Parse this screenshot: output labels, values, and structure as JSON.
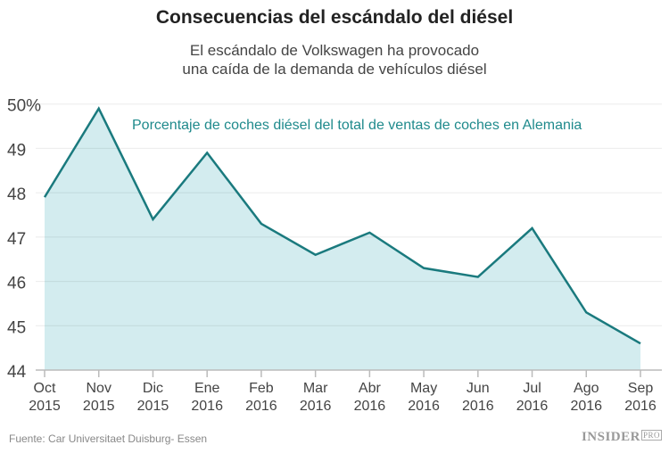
{
  "chart_data": {
    "type": "area",
    "title": "Consecuencias del escándalo del diésel",
    "subtitle_lines": [
      "El escándalo de Volkswagen ha provocado",
      "una caída de la demanda de vehículos diésel"
    ],
    "annotation": "Porcentaje de coches diésel del total de ventas de coches en Alemania",
    "categories": [
      [
        "Oct",
        "2015"
      ],
      [
        "Nov",
        "2015"
      ],
      [
        "Dic",
        "2015"
      ],
      [
        "Ene",
        "2016"
      ],
      [
        "Feb",
        "2016"
      ],
      [
        "Mar",
        "2016"
      ],
      [
        "Abr",
        "2016"
      ],
      [
        "May",
        "2016"
      ],
      [
        "Jun",
        "2016"
      ],
      [
        "Jul",
        "2016"
      ],
      [
        "Ago",
        "2016"
      ],
      [
        "Sep",
        "2016"
      ]
    ],
    "values": [
      47.9,
      49.9,
      47.4,
      48.9,
      47.3,
      46.6,
      47.1,
      46.3,
      46.1,
      47.2,
      45.3,
      44.6
    ],
    "ylim": [
      44,
      50
    ],
    "yticks": [
      "44",
      "45",
      "46",
      "47",
      "48",
      "49",
      "50%"
    ],
    "grid": true,
    "line_color": "#1a7a7e",
    "fill_color": "#d3ecef",
    "annotation_color": "#1f8a8c"
  },
  "footer": {
    "source": "Fuente: Car Universitaet Duisburg- Essen",
    "logo": "INSIDER",
    "logo_suffix": "PRO"
  }
}
